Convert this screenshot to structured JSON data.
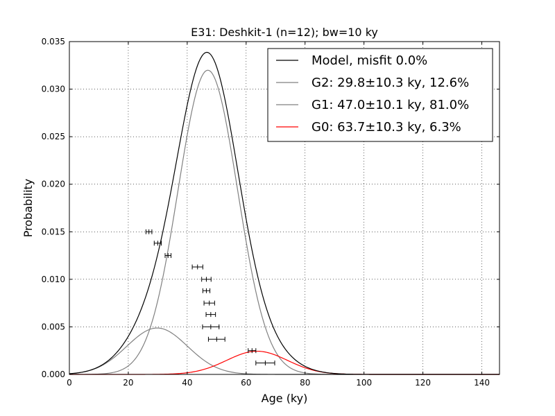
{
  "chart_data": {
    "type": "line",
    "title": "E31: Deshkit-1 (n=12); bw=10 ky",
    "xlabel": "Age (ky)",
    "ylabel": "Probability",
    "xlim": [
      0,
      146
    ],
    "ylim": [
      0,
      0.035
    ],
    "xticks": [
      0,
      20,
      40,
      60,
      80,
      100,
      120,
      140
    ],
    "yticks": [
      0.0,
      0.005,
      0.01,
      0.015,
      0.02,
      0.025,
      0.03,
      0.035
    ],
    "xtick_labels": [
      "0",
      "20",
      "40",
      "60",
      "80",
      "100",
      "120",
      "140"
    ],
    "ytick_labels": [
      "0.000",
      "0.005",
      "0.010",
      "0.015",
      "0.020",
      "0.025",
      "0.030",
      "0.035"
    ],
    "grid": true,
    "legend_position": "top-right",
    "series": [
      {
        "name": "Model, misfit 0.0%",
        "color": "#000000",
        "kind": "model"
      },
      {
        "name": "G2: 29.8±10.3 ky, 12.6%",
        "color": "#808080",
        "mean": 29.8,
        "sigma": 10.3,
        "weight": 0.126
      },
      {
        "name": "G1: 47.0±10.1 ky, 81.0%",
        "color": "#808080",
        "mean": 47.0,
        "sigma": 10.1,
        "weight": 0.81
      },
      {
        "name": "G0: 63.7±10.3 ky, 6.3%",
        "color": "#ff0000",
        "mean": 63.7,
        "sigma": 10.3,
        "weight": 0.063
      }
    ],
    "samples": [
      {
        "age": 27.0,
        "err": 1.0,
        "y": 0.015
      },
      {
        "age": 30.0,
        "err": 1.2,
        "y": 0.0138
      },
      {
        "age": 33.5,
        "err": 1.0,
        "y": 0.0125
      },
      {
        "age": 43.5,
        "err": 1.8,
        "y": 0.0113
      },
      {
        "age": 46.5,
        "err": 1.6,
        "y": 0.01
      },
      {
        "age": 46.5,
        "err": 1.2,
        "y": 0.0088
      },
      {
        "age": 47.5,
        "err": 1.8,
        "y": 0.0075
      },
      {
        "age": 48.0,
        "err": 1.6,
        "y": 0.0063
      },
      {
        "age": 48.0,
        "err": 2.8,
        "y": 0.005
      },
      {
        "age": 50.0,
        "err": 2.8,
        "y": 0.0037
      },
      {
        "age": 62.0,
        "err": 1.3,
        "y": 0.0025
      },
      {
        "age": 66.5,
        "err": 3.2,
        "y": 0.0012
      }
    ]
  }
}
